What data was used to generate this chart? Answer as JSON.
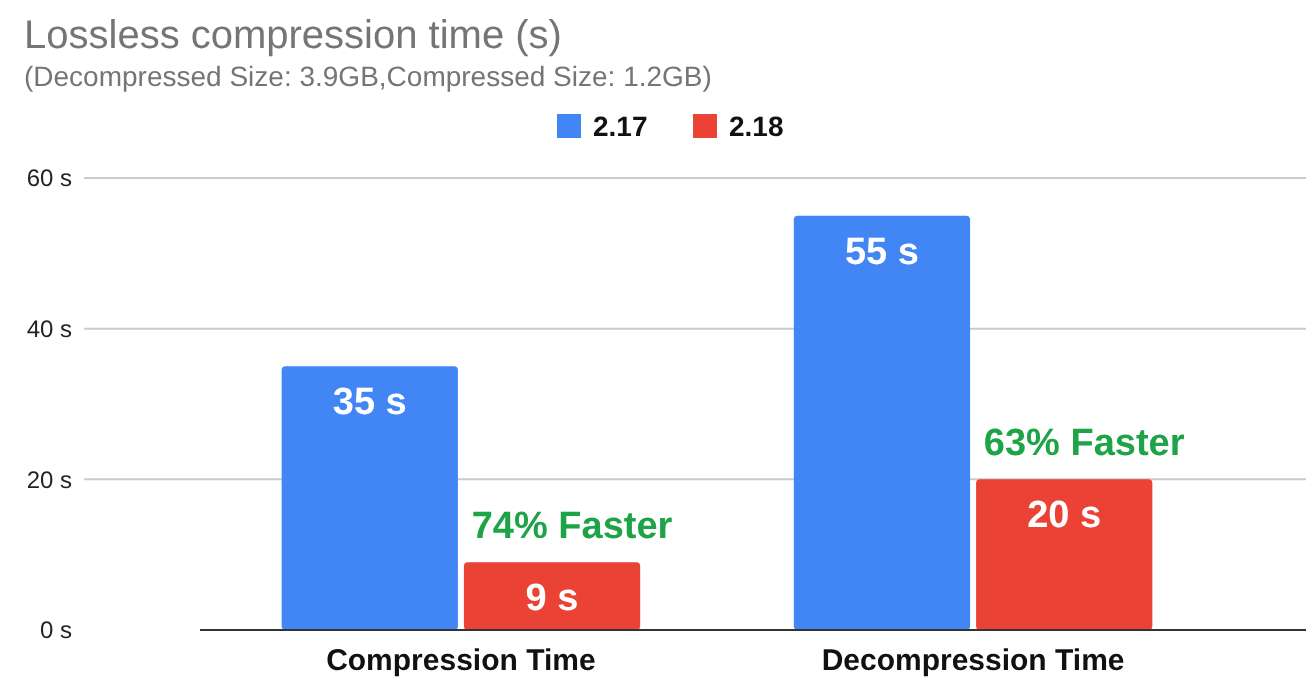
{
  "chart_data": {
    "type": "bar",
    "title": "Lossless compression time (s)",
    "subtitle": "(Decompressed Size: 3.9GB,Compressed Size: 1.2GB)",
    "categories": [
      "Compression Time",
      "Decompression Time"
    ],
    "series": [
      {
        "name": "2.17",
        "color": "#4285f4",
        "values": [
          35,
          55
        ],
        "value_labels": [
          "35 s",
          "55 s"
        ]
      },
      {
        "name": "2.18",
        "color": "#ea4335",
        "values": [
          9,
          20
        ],
        "value_labels": [
          "9 s",
          "20 s"
        ]
      }
    ],
    "ylim": [
      0,
      60
    ],
    "yticks": [
      {
        "value": 0,
        "label": "0 s"
      },
      {
        "value": 20,
        "label": "20 s"
      },
      {
        "value": 40,
        "label": "40 s"
      },
      {
        "value": 60,
        "label": "60 s"
      }
    ],
    "grid": "y",
    "legend": "top",
    "annotations": [
      {
        "text": "74% Faster",
        "x": "Compression Time",
        "y": 9
      },
      {
        "text": "63% Faster",
        "x": "Decompression Time",
        "y": 20
      }
    ]
  }
}
